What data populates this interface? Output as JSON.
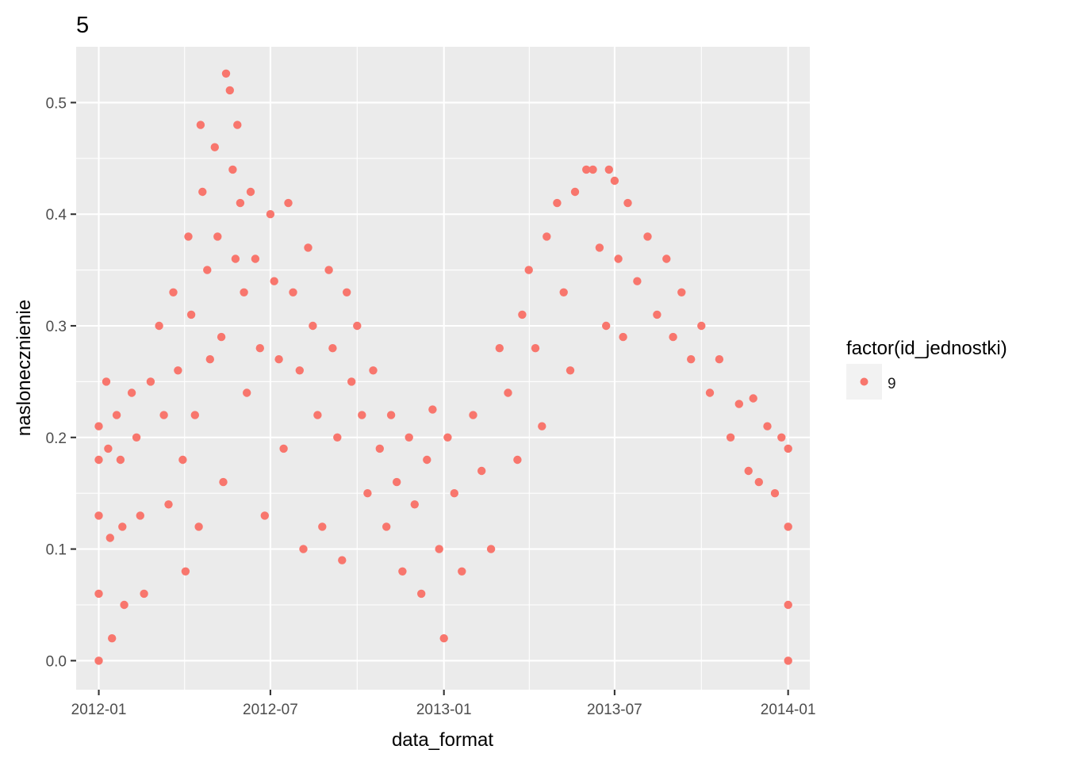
{
  "chart_data": {
    "type": "scatter",
    "title": "5",
    "xlabel": "data_format",
    "ylabel": "naslonecznienie",
    "x_axis_type": "date",
    "xlim": [
      "2011-12-08",
      "2014-01-24"
    ],
    "ylim": [
      -0.026,
      0.55
    ],
    "x_ticks": [
      "2012-01",
      "2012-07",
      "2013-01",
      "2013-07",
      "2014-01"
    ],
    "x_tick_dates": [
      "2012-01-01",
      "2012-07-01",
      "2013-01-01",
      "2013-07-01",
      "2014-01-01"
    ],
    "y_ticks": [
      "0.0",
      "0.1",
      "0.2",
      "0.3",
      "0.4",
      "0.5"
    ],
    "y_tick_values": [
      0.0,
      0.1,
      0.2,
      0.3,
      0.4,
      0.5
    ],
    "grid": true,
    "legend": {
      "title": "factor(id_jednostki)",
      "position": "right",
      "entries": [
        {
          "label": "9",
          "color": "#F8766D"
        }
      ]
    },
    "point_color": "#F8766D",
    "panel_background": "#EBEBEB",
    "grid_color": "#FFFFFF",
    "series": [
      {
        "name": "9",
        "points": [
          [
            "2012-01-01",
            0.21
          ],
          [
            "2012-01-01",
            0.18
          ],
          [
            "2012-01-01",
            0.13
          ],
          [
            "2012-01-01",
            0.06
          ],
          [
            "2012-01-01",
            0.0
          ],
          [
            "2012-01-09",
            0.25
          ],
          [
            "2012-01-11",
            0.19
          ],
          [
            "2012-01-13",
            0.11
          ],
          [
            "2012-01-15",
            0.02
          ],
          [
            "2012-01-20",
            0.22
          ],
          [
            "2012-01-24",
            0.18
          ],
          [
            "2012-01-26",
            0.12
          ],
          [
            "2012-01-28",
            0.05
          ],
          [
            "2012-02-05",
            0.24
          ],
          [
            "2012-02-10",
            0.2
          ],
          [
            "2012-02-14",
            0.13
          ],
          [
            "2012-02-18",
            0.06
          ],
          [
            "2012-02-25",
            0.25
          ],
          [
            "2012-03-05",
            0.3
          ],
          [
            "2012-03-10",
            0.22
          ],
          [
            "2012-03-15",
            0.14
          ],
          [
            "2012-03-20",
            0.33
          ],
          [
            "2012-03-25",
            0.26
          ],
          [
            "2012-03-30",
            0.18
          ],
          [
            "2012-04-02",
            0.08
          ],
          [
            "2012-04-05",
            0.38
          ],
          [
            "2012-04-08",
            0.31
          ],
          [
            "2012-04-12",
            0.22
          ],
          [
            "2012-04-16",
            0.12
          ],
          [
            "2012-04-18",
            0.48
          ],
          [
            "2012-04-20",
            0.42
          ],
          [
            "2012-04-25",
            0.35
          ],
          [
            "2012-04-28",
            0.27
          ],
          [
            "2012-05-03",
            0.46
          ],
          [
            "2012-05-06",
            0.38
          ],
          [
            "2012-05-10",
            0.29
          ],
          [
            "2012-05-12",
            0.16
          ],
          [
            "2012-05-15",
            0.526
          ],
          [
            "2012-05-19",
            0.511
          ],
          [
            "2012-05-22",
            0.44
          ],
          [
            "2012-05-25",
            0.36
          ],
          [
            "2012-05-27",
            0.48
          ],
          [
            "2012-05-30",
            0.41
          ],
          [
            "2012-06-03",
            0.33
          ],
          [
            "2012-06-06",
            0.24
          ],
          [
            "2012-06-10",
            0.42
          ],
          [
            "2012-06-15",
            0.36
          ],
          [
            "2012-06-20",
            0.28
          ],
          [
            "2012-06-25",
            0.13
          ],
          [
            "2012-07-01",
            0.4
          ],
          [
            "2012-07-05",
            0.34
          ],
          [
            "2012-07-10",
            0.27
          ],
          [
            "2012-07-15",
            0.19
          ],
          [
            "2012-07-20",
            0.41
          ],
          [
            "2012-07-25",
            0.33
          ],
          [
            "2012-08-01",
            0.26
          ],
          [
            "2012-08-05",
            0.1
          ],
          [
            "2012-08-10",
            0.37
          ],
          [
            "2012-08-15",
            0.3
          ],
          [
            "2012-08-20",
            0.22
          ],
          [
            "2012-08-25",
            0.12
          ],
          [
            "2012-09-01",
            0.35
          ],
          [
            "2012-09-05",
            0.28
          ],
          [
            "2012-09-10",
            0.2
          ],
          [
            "2012-09-15",
            0.09
          ],
          [
            "2012-09-20",
            0.33
          ],
          [
            "2012-09-25",
            0.25
          ],
          [
            "2012-10-01",
            0.3
          ],
          [
            "2012-10-06",
            0.22
          ],
          [
            "2012-10-12",
            0.15
          ],
          [
            "2012-10-18",
            0.26
          ],
          [
            "2012-10-25",
            0.19
          ],
          [
            "2012-11-01",
            0.12
          ],
          [
            "2012-11-06",
            0.22
          ],
          [
            "2012-11-12",
            0.16
          ],
          [
            "2012-11-18",
            0.08
          ],
          [
            "2012-11-25",
            0.2
          ],
          [
            "2012-12-01",
            0.14
          ],
          [
            "2012-12-08",
            0.06
          ],
          [
            "2012-12-14",
            0.18
          ],
          [
            "2012-12-20",
            0.225
          ],
          [
            "2012-12-27",
            0.1
          ],
          [
            "2013-01-01",
            0.02
          ],
          [
            "2013-01-05",
            0.2
          ],
          [
            "2013-01-12",
            0.15
          ],
          [
            "2013-01-20",
            0.08
          ],
          [
            "2013-02-01",
            0.22
          ],
          [
            "2013-02-10",
            0.17
          ],
          [
            "2013-02-20",
            0.1
          ],
          [
            "2013-03-01",
            0.28
          ],
          [
            "2013-03-10",
            0.24
          ],
          [
            "2013-03-20",
            0.18
          ],
          [
            "2013-03-25",
            0.31
          ],
          [
            "2013-04-01",
            0.35
          ],
          [
            "2013-04-08",
            0.28
          ],
          [
            "2013-04-15",
            0.21
          ],
          [
            "2013-04-20",
            0.38
          ],
          [
            "2013-05-01",
            0.41
          ],
          [
            "2013-05-08",
            0.33
          ],
          [
            "2013-05-15",
            0.26
          ],
          [
            "2013-05-20",
            0.42
          ],
          [
            "2013-06-01",
            0.44
          ],
          [
            "2013-06-08",
            0.44
          ],
          [
            "2013-06-15",
            0.37
          ],
          [
            "2013-06-22",
            0.3
          ],
          [
            "2013-06-25",
            0.44
          ],
          [
            "2013-07-01",
            0.43
          ],
          [
            "2013-07-05",
            0.36
          ],
          [
            "2013-07-10",
            0.29
          ],
          [
            "2013-07-15",
            0.41
          ],
          [
            "2013-07-25",
            0.34
          ],
          [
            "2013-08-05",
            0.38
          ],
          [
            "2013-08-15",
            0.31
          ],
          [
            "2013-08-25",
            0.36
          ],
          [
            "2013-09-01",
            0.29
          ],
          [
            "2013-09-10",
            0.33
          ],
          [
            "2013-09-20",
            0.27
          ],
          [
            "2013-10-01",
            0.3
          ],
          [
            "2013-10-10",
            0.24
          ],
          [
            "2013-10-20",
            0.27
          ],
          [
            "2013-11-01",
            0.2
          ],
          [
            "2013-11-10",
            0.23
          ],
          [
            "2013-11-20",
            0.17
          ],
          [
            "2013-11-25",
            0.235
          ],
          [
            "2013-12-01",
            0.16
          ],
          [
            "2013-12-10",
            0.21
          ],
          [
            "2013-12-18",
            0.15
          ],
          [
            "2013-12-25",
            0.2
          ],
          [
            "2014-01-01",
            0.19
          ],
          [
            "2014-01-01",
            0.12
          ],
          [
            "2014-01-01",
            0.05
          ],
          [
            "2014-01-01",
            0.0
          ]
        ]
      }
    ]
  }
}
